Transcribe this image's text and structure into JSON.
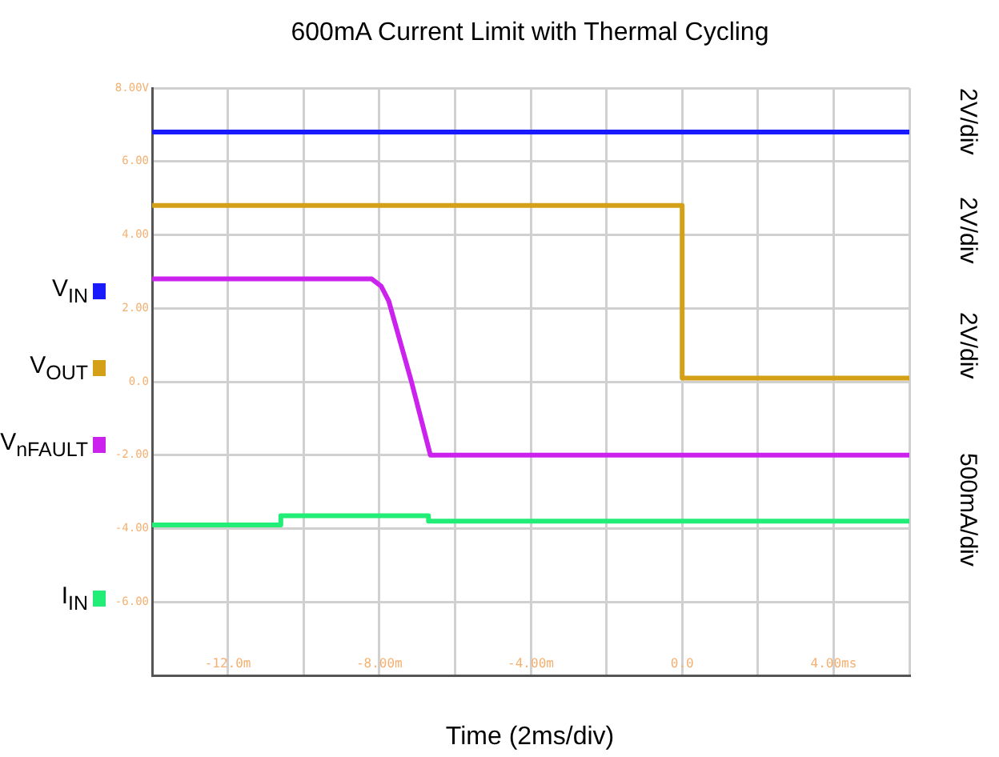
{
  "chart_data": {
    "type": "line",
    "title": "600mA Current Limit with Thermal Cycling",
    "xlabel": "Time (2ms/div)",
    "series": [
      {
        "name": "V$_{IN}$",
        "color": "#1a1aff",
        "x": [
          -14,
          6
        ],
        "values": [
          6.8,
          6.8
        ]
      },
      {
        "name": "V$_{OUT}$",
        "color": "#d4a017",
        "x": [
          -14,
          0,
          0,
          6
        ],
        "values": [
          4.8,
          4.8,
          0.1,
          0.1
        ]
      },
      {
        "name": "V$_{nFAULT}$",
        "color": "#cc22ee",
        "x": [
          -14,
          -8.2,
          -7.95,
          -7.75,
          -7.15,
          -6.65,
          6
        ],
        "values": [
          2.8,
          2.8,
          2.6,
          2.2,
          0,
          -2.0,
          -2.0
        ]
      },
      {
        "name": "I$_{IN}$",
        "color": "#22ee77",
        "x": [
          -14,
          -10.6,
          -10.6,
          -6.7,
          -6.7,
          6
        ],
        "values": [
          -3.9,
          -3.9,
          -3.65,
          -3.65,
          -3.8,
          -3.8
        ]
      }
    ],
    "xlim": [
      -14,
      6
    ],
    "xticks": [
      {
        "value": -14,
        "label": null
      },
      {
        "value": -12,
        "label": "-12.0m"
      },
      {
        "value": -10,
        "label": null
      },
      {
        "value": -8,
        "label": "-8.00m"
      },
      {
        "value": -6,
        "label": null
      },
      {
        "value": -4,
        "label": "-4.00m"
      },
      {
        "value": -2,
        "label": null
      },
      {
        "value": 0,
        "label": "0.0"
      },
      {
        "value": 2,
        "label": null
      },
      {
        "value": 4,
        "label": "4.00ms"
      },
      {
        "value": 6,
        "label": null
      }
    ],
    "ylim": [
      -8,
      8
    ],
    "yticks": [
      {
        "value": -8,
        "label": null
      },
      {
        "value": -6,
        "label": "-6.00"
      },
      {
        "value": -4,
        "label": "-4.00"
      },
      {
        "value": -2,
        "label": "-2.00"
      },
      {
        "value": 0,
        "label": "0.0"
      },
      {
        "value": 2,
        "label": "2.00"
      },
      {
        "value": 4,
        "label": "4.00"
      },
      {
        "value": 6,
        "label": "6.00"
      },
      {
        "value": 8,
        "label": "8.00V"
      }
    ],
    "grid": true,
    "legend": "left",
    "marker": "none",
    "line_style": "solid",
    "annotations": [
      "2V/div",
      "2V/div",
      "2V/div",
      "500mA/div"
    ]
  }
}
